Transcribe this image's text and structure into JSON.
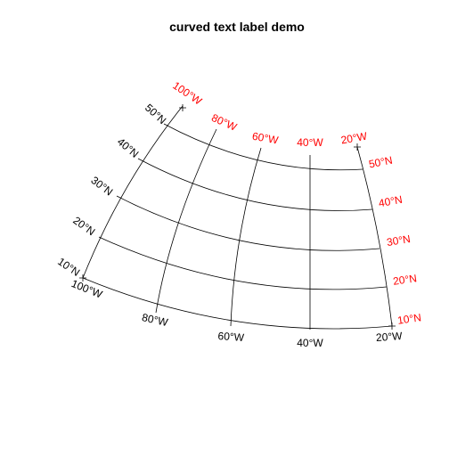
{
  "title": "curved text label demo",
  "colors": {
    "outer_labels": "#000000",
    "inner_labels": "#ff0000",
    "lines": "#000000"
  },
  "bottom_labels": [
    "100°W",
    "80°W",
    "60°W",
    "40°W",
    "20°W"
  ],
  "top_labels": [
    "100°W",
    "80°W",
    "60°W",
    "40°W",
    "20°W"
  ],
  "left_labels": [
    "10°N",
    "20°N",
    "30°N",
    "40°N",
    "50°N"
  ],
  "right_labels": [
    "10°N",
    "20°N",
    "30°N",
    "40°N",
    "50°N"
  ]
}
